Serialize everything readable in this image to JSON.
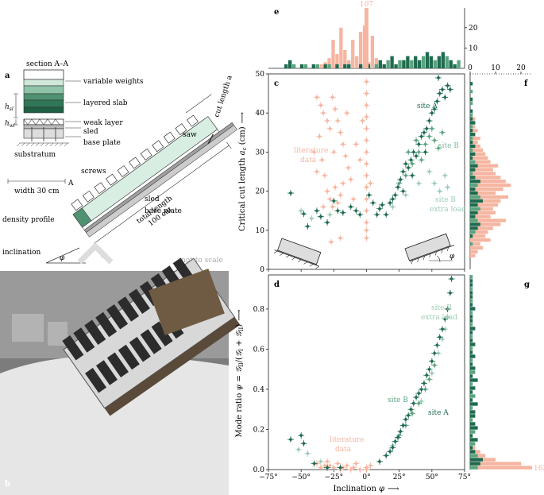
{
  "colors": {
    "site_a": "#1e6b4f",
    "site_b": "#5aa37f",
    "site_b_extra": "#9fcbb5",
    "literature": "#f5b5a0",
    "slab": "#cfe8d9",
    "slab_dark": "#5f9f7f",
    "sled": "#9a9a9a",
    "photo_bg": "#8a8a8a"
  },
  "panel_labels": {
    "a": "a",
    "b": "b",
    "c": "c",
    "d": "d",
    "e": "e",
    "f": "f",
    "g": "g"
  },
  "schematic": {
    "section": "section A–A",
    "variable_weights": "variable weights",
    "layered_slab": "layered slab",
    "weak_layer": "weak layer",
    "sled": "sled",
    "base_plate": "base plate",
    "substratum": "substratum",
    "screws": "screws",
    "width": "width 30 cm",
    "density_profile": "density profile",
    "inclination": "inclination",
    "phi": "φ",
    "saw": "saw",
    "total_length": "total length",
    "total_length_value": "100 cm",
    "cut_length": "cut length a",
    "sled2": "sled",
    "base_plate2": "base plate",
    "section_mark": "A",
    "section_mark2": "A",
    "not_to_scale": "not to scale",
    "h_sl": "h",
    "h_sl_sub": "sl",
    "h_wl": "h",
    "h_wl_sub": "wl"
  },
  "chart_data": [
    {
      "panel": "c",
      "type": "scatter",
      "xlabel": "",
      "ylabel": "Critical cut length a_c (cm)",
      "ylabel_main": "Critical cut length ",
      "ylabel_sym": "a",
      "ylabel_sub": "c",
      "ylabel_unit": " (cm)",
      "arrow": "⟶",
      "xlim": [
        -75,
        75
      ],
      "ylim": [
        0,
        50
      ],
      "yticks": [
        "0",
        "10",
        "20",
        "30",
        "40",
        "50"
      ],
      "annotations": {
        "site_a": "site A",
        "site_b": "site B",
        "site_b_extra1": "site B",
        "site_b_extra2": "extra load",
        "literature1": "literature",
        "literature2": "data",
        "phi": "φ"
      },
      "series": [
        {
          "name": "site A",
          "points": [
            [
              -58,
              19.5
            ],
            [
              -48,
              14.2
            ],
            [
              -45,
              11
            ],
            [
              -38,
              15
            ],
            [
              -35,
              13.5
            ],
            [
              -30,
              12
            ],
            [
              -25,
              17.5
            ],
            [
              -22,
              15
            ],
            [
              -18,
              14.5
            ],
            [
              -12,
              16
            ],
            [
              -8,
              15
            ],
            [
              -5,
              14
            ],
            [
              2,
              19
            ],
            [
              5,
              17
            ],
            [
              8,
              14
            ],
            [
              10,
              15.5
            ],
            [
              12,
              16.5
            ],
            [
              15,
              14
            ],
            [
              18,
              17
            ],
            [
              20,
              18
            ],
            [
              22,
              19
            ],
            [
              24,
              21
            ],
            [
              26,
              23
            ],
            [
              28,
              25
            ],
            [
              30,
              27
            ],
            [
              32,
              26
            ],
            [
              34,
              28
            ],
            [
              36,
              30
            ],
            [
              38,
              29
            ],
            [
              40,
              32
            ],
            [
              42,
              34
            ],
            [
              44,
              35
            ],
            [
              46,
              36
            ],
            [
              48,
              38
            ],
            [
              50,
              40
            ],
            [
              52,
              41
            ],
            [
              54,
              43
            ],
            [
              56,
              45
            ],
            [
              58,
              46
            ],
            [
              60,
              44
            ],
            [
              62,
              47
            ],
            [
              64,
              46
            ],
            [
              55,
              49
            ],
            [
              45,
              30
            ],
            [
              35,
              24
            ],
            [
              28,
              20
            ]
          ]
        },
        {
          "name": "site B",
          "points": [
            [
              25,
              22
            ],
            [
              30,
              24
            ],
            [
              32,
              30
            ],
            [
              35,
              27
            ],
            [
              38,
              33
            ],
            [
              40,
              30
            ],
            [
              42,
              28
            ],
            [
              45,
              32
            ],
            [
              48,
              34
            ],
            [
              50,
              36
            ],
            [
              52,
              33
            ],
            [
              55,
              31
            ],
            [
              58,
              35
            ]
          ]
        },
        {
          "name": "site B extra load",
          "points": [
            [
              -50,
              15
            ],
            [
              -42,
              13
            ],
            [
              -28,
              14
            ],
            [
              20,
              16
            ],
            [
              30,
              19
            ],
            [
              40,
              22
            ],
            [
              48,
              25
            ],
            [
              52,
              22
            ],
            [
              56,
              20
            ],
            [
              60,
              24
            ],
            [
              62,
              21
            ]
          ]
        },
        {
          "name": "literature data",
          "points": [
            [
              -38,
              44
            ],
            [
              -35,
              42
            ],
            [
              -33,
              40
            ],
            [
              -30,
              38
            ],
            [
              -28,
              36
            ],
            [
              -26,
              44
            ],
            [
              -24,
              41
            ],
            [
              -22,
              38
            ],
            [
              -20,
              35
            ],
            [
              -18,
              32
            ],
            [
              -16,
              29
            ],
            [
              -14,
              26
            ],
            [
              -12,
              23
            ],
            [
              -34,
              28
            ],
            [
              -32,
              24
            ],
            [
              -30,
              20
            ],
            [
              -28,
              18
            ],
            [
              -26,
              16
            ],
            [
              -24,
              21
            ],
            [
              -22,
              17
            ],
            [
              -20,
              19
            ],
            [
              -18,
              22
            ],
            [
              -36,
              34
            ],
            [
              -40,
              30
            ],
            [
              -38,
              25
            ],
            [
              -25,
              30
            ],
            [
              -15,
              40
            ],
            [
              -27,
              7
            ],
            [
              -20,
              8
            ],
            [
              -33,
              16
            ],
            [
              0,
              48
            ],
            [
              0,
              45
            ],
            [
              0,
              42
            ],
            [
              0,
              39
            ],
            [
              0,
              36
            ],
            [
              0,
              33
            ],
            [
              0,
              30
            ],
            [
              0,
              27
            ],
            [
              0,
              24
            ],
            [
              0,
              21
            ],
            [
              0,
              18
            ],
            [
              0,
              15
            ],
            [
              0,
              12
            ],
            [
              0,
              10
            ],
            [
              0,
              8
            ],
            [
              -5,
              28
            ],
            [
              -8,
              32
            ],
            [
              -3,
              38
            ],
            [
              3,
              22
            ],
            [
              -10,
              18
            ]
          ]
        }
      ]
    },
    {
      "panel": "d",
      "type": "scatter",
      "xlabel": "Inclination φ ⟶",
      "xlabel_main": "Inclination ",
      "xlabel_sym": "φ",
      "ylabel": "Mode ratio ψ = G_II/(G_I + G_II) ⟶",
      "ylabel_text": "Mode ratio ψ = 𝒢",
      "xlim": [
        -75,
        75
      ],
      "ylim": [
        0,
        0.97
      ],
      "xticks": [
        "−75°",
        "−50°",
        "−25°",
        "0°",
        "25°",
        "50°",
        "75°"
      ],
      "yticks": [
        "0.0",
        "0.2",
        "0.4",
        "0.6",
        "0.8"
      ],
      "annotations": {
        "site_a": "site A",
        "site_b": "site B",
        "site_b_extra1": "site B",
        "site_b_extra2": "extra load",
        "literature1": "literature",
        "literature2": "data"
      },
      "series": [
        {
          "name": "site A",
          "points": [
            [
              -58,
              0.15
            ],
            [
              -50,
              0.17
            ],
            [
              -48,
              0.13
            ],
            [
              -40,
              0.03
            ],
            [
              -30,
              0.01
            ],
            [
              -20,
              0.01
            ],
            [
              10,
              0.04
            ],
            [
              15,
              0.07
            ],
            [
              18,
              0.09
            ],
            [
              20,
              0.11
            ],
            [
              22,
              0.14
            ],
            [
              24,
              0.16
            ],
            [
              26,
              0.19
            ],
            [
              28,
              0.22
            ],
            [
              30,
              0.25
            ],
            [
              32,
              0.27
            ],
            [
              34,
              0.3
            ],
            [
              36,
              0.33
            ],
            [
              38,
              0.36
            ],
            [
              40,
              0.38
            ],
            [
              42,
              0.4
            ],
            [
              44,
              0.43
            ],
            [
              46,
              0.47
            ],
            [
              48,
              0.5
            ],
            [
              50,
              0.54
            ],
            [
              52,
              0.58
            ],
            [
              54,
              0.62
            ],
            [
              56,
              0.66
            ],
            [
              58,
              0.7
            ],
            [
              60,
              0.75
            ],
            [
              62,
              0.8
            ],
            [
              64,
              0.88
            ],
            [
              65,
              0.95
            ]
          ]
        },
        {
          "name": "site B",
          "points": [
            [
              25,
              0.17
            ],
            [
              30,
              0.22
            ],
            [
              35,
              0.28
            ],
            [
              40,
              0.33
            ],
            [
              45,
              0.4
            ],
            [
              48,
              0.45
            ],
            [
              52,
              0.52
            ]
          ]
        },
        {
          "name": "site B extra load",
          "points": [
            [
              -52,
              0.1
            ],
            [
              -45,
              0.08
            ],
            [
              -35,
              0.04
            ],
            [
              20,
              0.12
            ],
            [
              42,
              0.34
            ],
            [
              50,
              0.48
            ],
            [
              55,
              0.58
            ],
            [
              58,
              0.65
            ],
            [
              60,
              0.7
            ],
            [
              62,
              0.76
            ]
          ]
        },
        {
          "name": "literature data",
          "points": [
            [
              -38,
              0.03
            ],
            [
              -35,
              0.01
            ],
            [
              -32,
              0.02
            ],
            [
              -30,
              0.04
            ],
            [
              -28,
              0.02
            ],
            [
              -25,
              0.01
            ],
            [
              -22,
              0.03
            ],
            [
              -20,
              0.0
            ],
            [
              -18,
              0.01
            ],
            [
              -15,
              0.02
            ],
            [
              -12,
              0.0
            ],
            [
              -10,
              0.01
            ],
            [
              -5,
              0.0
            ],
            [
              0,
              0.0
            ],
            [
              0,
              0.01
            ],
            [
              3,
              0.02
            ],
            [
              -8,
              0.03
            ]
          ]
        }
      ]
    },
    {
      "panel": "e",
      "type": "bar",
      "description": "histogram of inclination counts",
      "xlim": [
        -75,
        75
      ],
      "ylim": [
        0,
        25
      ],
      "yticks": [
        "20",
        "10"
      ],
      "peak_label": "107",
      "bin_width": 3,
      "literature_counts": [
        0,
        0,
        0,
        0,
        0,
        0,
        0,
        0,
        0,
        0,
        0,
        0,
        0,
        2,
        3,
        5,
        14,
        7,
        20,
        9,
        4,
        14,
        6,
        18,
        21,
        3,
        16,
        5,
        0,
        2,
        0,
        0,
        0,
        0,
        0,
        0,
        0,
        0,
        0,
        0,
        0,
        0,
        0,
        0,
        0,
        0,
        0,
        0,
        0,
        0
      ],
      "site_counts": [
        0,
        0,
        0,
        0,
        1,
        2,
        1,
        0,
        1,
        1,
        0,
        1,
        1,
        0,
        1,
        1,
        0,
        1,
        0,
        1,
        1,
        0,
        0,
        1,
        0,
        1,
        0,
        1,
        2,
        1,
        2,
        3,
        1,
        2,
        2,
        3,
        2,
        3,
        2,
        3,
        4,
        3,
        2,
        3,
        4,
        3,
        2,
        1,
        2,
        0
      ]
    },
    {
      "panel": "f",
      "type": "bar",
      "description": "horizontal histogram of critical cut length",
      "xlim": [
        0,
        25
      ],
      "xticks": [
        "0",
        "10",
        "20"
      ],
      "literature_counts": [
        0,
        0,
        0,
        2,
        3,
        5,
        4,
        8,
        6,
        7,
        9,
        12,
        14,
        8,
        10,
        9,
        11,
        12,
        15,
        10,
        13,
        16,
        14,
        12,
        10,
        9,
        11,
        8,
        7,
        6,
        5,
        4,
        3,
        4,
        2,
        3,
        2,
        1,
        2,
        1,
        1,
        0,
        1,
        0,
        0,
        0,
        0,
        0,
        0,
        0
      ],
      "site_counts": [
        0,
        0,
        0,
        0,
        0,
        0,
        1,
        0,
        1,
        2,
        3,
        4,
        3,
        2,
        3,
        4,
        3,
        5,
        4,
        3,
        2,
        3,
        4,
        2,
        1,
        2,
        3,
        2,
        1,
        2,
        1,
        2,
        1,
        1,
        2,
        1,
        1,
        2,
        1,
        1,
        1,
        0,
        1,
        1,
        0,
        1,
        0,
        1,
        0,
        0
      ]
    },
    {
      "panel": "g",
      "type": "bar",
      "description": "horizontal histogram of mode ratio",
      "xlim": [
        0,
        25
      ],
      "peak_label": "163",
      "literature_counts": [
        25,
        20,
        10,
        6,
        4,
        2,
        1,
        1,
        0,
        1,
        0,
        0,
        0,
        0,
        0,
        0,
        0,
        0,
        0,
        0,
        0,
        0,
        0,
        0,
        0,
        0,
        0,
        0,
        0,
        0,
        0,
        0,
        0,
        0,
        0,
        0,
        0,
        0,
        0,
        0,
        0,
        0,
        0,
        0,
        0,
        0,
        0,
        0,
        0
      ],
      "site_counts": [
        3,
        4,
        5,
        3,
        2,
        1,
        2,
        3,
        1,
        2,
        3,
        2,
        1,
        2,
        2,
        1,
        3,
        1,
        2,
        1,
        2,
        1,
        3,
        1,
        2,
        2,
        1,
        1,
        2,
        1,
        1,
        2,
        1,
        1,
        1,
        2,
        1,
        1,
        1,
        1,
        2,
        1,
        1,
        1,
        1,
        1,
        1,
        1,
        1
      ]
    }
  ]
}
